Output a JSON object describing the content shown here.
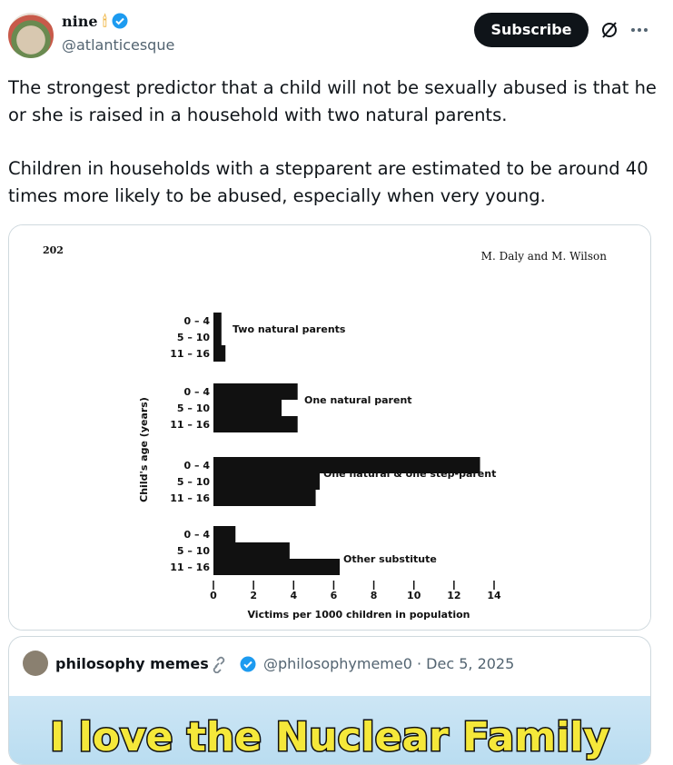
{
  "header": {
    "name": "nine",
    "handle": "@atlanticesque",
    "subscribe": "Subscribe"
  },
  "tweet": {
    "paragraphs": [
      "The strongest predictor that a child will not be sexually abused is that he or she is raised in a household with two natural parents.",
      "Children in households with a stepparent are estimated to be around 40 times more likely to be abused, especially when very young."
    ]
  },
  "chart_data": {
    "type": "bar",
    "orientation": "horizontal",
    "color": "#111111",
    "page_number": "202",
    "authors": "M. Daly and M. Wilson",
    "xlabel": "Victims per 1000 children in population",
    "ylabel": "Child's age (years)",
    "categories": [
      "0 – 4",
      "5 – 10",
      "11 – 16"
    ],
    "groups": [
      {
        "name": "Two natural parents",
        "values": [
          0.4,
          0.4,
          0.6
        ]
      },
      {
        "name": "One natural parent",
        "values": [
          4.2,
          3.4,
          4.2
        ]
      },
      {
        "name": "One natural & one step-parent",
        "values": [
          13.3,
          5.3,
          5.1
        ]
      },
      {
        "name": "Other substitute",
        "values": [
          1.1,
          3.8,
          6.3
        ]
      }
    ],
    "xlim": [
      0,
      14
    ],
    "xticks": [
      0,
      2,
      4,
      6,
      8,
      10,
      12,
      14
    ]
  },
  "quote": {
    "name": "philosophy memes",
    "handle": "@philosophymeme0",
    "date": "· Dec 5, 2025",
    "image_text": "I love the Nuclear Family"
  }
}
